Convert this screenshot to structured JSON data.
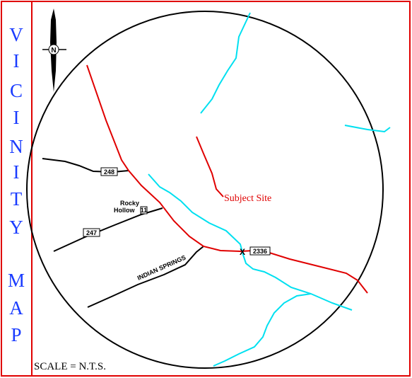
{
  "title_letters": [
    "V",
    "I",
    "C",
    "I",
    "N",
    "I",
    "T",
    "Y",
    "M",
    "A",
    "P"
  ],
  "compass": {
    "north_label": "N"
  },
  "routes": {
    "r248": "248",
    "r247": "247",
    "r2336": "2336",
    "indian_springs": "INDIAN SPRINGS",
    "rocky_hollow_line1": "Rocky",
    "rocky_hollow_line2": "Hollow",
    "rocky_hollow_route": "11"
  },
  "site": {
    "label": "Subject Site",
    "marker": "X"
  },
  "scale": "SCALE = N.T.S.",
  "colors": {
    "border": "#e00000",
    "title": "#1a3cff",
    "road_primary": "#e00000",
    "road_secondary": "#000000",
    "stream": "#00e0f0"
  }
}
